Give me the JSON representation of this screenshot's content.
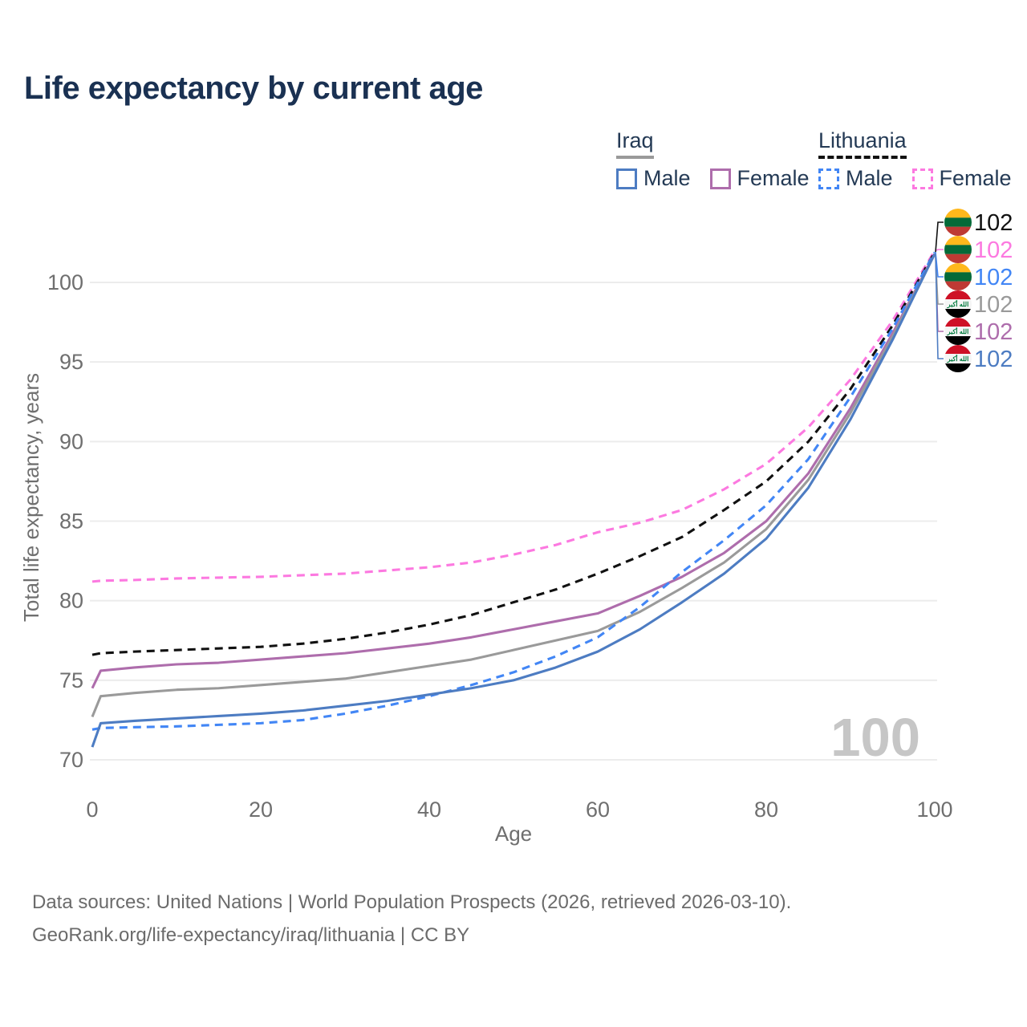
{
  "title": "Life expectancy by current age",
  "legend": {
    "groups": [
      {
        "name": "Iraq",
        "line_style": "solid",
        "underline_color": "#9a9a9a",
        "items": [
          {
            "label": "Male",
            "color": "#4d7cc2"
          },
          {
            "label": "Female",
            "color": "#ae6dac"
          }
        ]
      },
      {
        "name": "Lithuania",
        "line_style": "dashed",
        "underline_color": "#111111",
        "items": [
          {
            "label": "Male",
            "color": "#4286f5"
          },
          {
            "label": "Female",
            "color": "#fc79e0"
          }
        ]
      }
    ]
  },
  "watermark": "100",
  "footer": {
    "line1": "Data sources: United Nations | World Population Prospects (2026, retrieved 2026-03-10).",
    "line2": "GeoRank.org/life-expectancy/iraq/lithuania | CC BY"
  },
  "chart_data": {
    "type": "line",
    "title": "Life expectancy by current age",
    "xlabel": "Age",
    "ylabel": "Total life expectancy, years",
    "xlim": [
      0,
      100
    ],
    "ylim": [
      70,
      100
    ],
    "x_ticks": [
      0,
      20,
      40,
      60,
      80,
      100
    ],
    "y_ticks": [
      70,
      75,
      80,
      85,
      90,
      95,
      100
    ],
    "grid": "horizontal",
    "x": [
      0,
      1,
      5,
      10,
      15,
      20,
      25,
      30,
      35,
      40,
      45,
      50,
      55,
      60,
      65,
      70,
      75,
      80,
      85,
      90,
      95,
      100
    ],
    "series": [
      {
        "name": "Lithuania Female",
        "country": "Lithuania",
        "sex": "Female",
        "color": "#fc79e0",
        "dashed": true,
        "end_label": "102",
        "end_row": 1,
        "values": [
          81.2,
          81.25,
          81.3,
          81.4,
          81.45,
          81.5,
          81.6,
          81.7,
          81.9,
          82.1,
          82.4,
          82.9,
          83.5,
          84.3,
          84.9,
          85.7,
          87.0,
          88.6,
          90.9,
          93.9,
          97.6,
          102.0
        ]
      },
      {
        "name": "Lithuania",
        "country": "Lithuania",
        "sex": "Both",
        "color": "#111111",
        "dashed": true,
        "end_label": "102",
        "end_row": 0,
        "values": [
          76.6,
          76.7,
          76.8,
          76.9,
          77.0,
          77.1,
          77.3,
          77.6,
          78.0,
          78.5,
          79.1,
          79.9,
          80.7,
          81.7,
          82.8,
          84.0,
          85.7,
          87.5,
          90.0,
          93.3,
          97.3,
          101.9
        ]
      },
      {
        "name": "Iraq Female",
        "country": "Iraq",
        "sex": "Female",
        "color": "#ae6dac",
        "dashed": false,
        "end_label": "102",
        "end_row": 4,
        "values": [
          74.5,
          75.6,
          75.8,
          76.0,
          76.1,
          76.3,
          76.5,
          76.7,
          77.0,
          77.3,
          77.7,
          78.2,
          78.7,
          79.2,
          80.3,
          81.5,
          83.0,
          85.0,
          88.0,
          92.1,
          96.8,
          101.8
        ]
      },
      {
        "name": "Iraq",
        "country": "Iraq",
        "sex": "Both",
        "color": "#9a9a9a",
        "dashed": false,
        "end_label": "102",
        "end_row": 3,
        "values": [
          72.7,
          74.0,
          74.2,
          74.4,
          74.5,
          74.7,
          74.9,
          75.1,
          75.5,
          75.9,
          76.3,
          76.9,
          77.5,
          78.1,
          79.3,
          80.8,
          82.4,
          84.5,
          87.6,
          91.8,
          96.6,
          101.8
        ]
      },
      {
        "name": "Lithuania Male",
        "country": "Lithuania",
        "sex": "Male",
        "color": "#4286f5",
        "dashed": true,
        "end_label": "102",
        "end_row": 2,
        "values": [
          71.9,
          72.0,
          72.05,
          72.1,
          72.2,
          72.3,
          72.5,
          72.9,
          73.4,
          74.0,
          74.7,
          75.5,
          76.5,
          77.7,
          79.6,
          81.8,
          83.8,
          86.0,
          88.9,
          92.8,
          97.1,
          101.9
        ]
      },
      {
        "name": "Iraq Male",
        "country": "Iraq",
        "sex": "Male",
        "color": "#4d7cc2",
        "dashed": false,
        "end_label": "102",
        "end_row": 5,
        "values": [
          70.8,
          72.3,
          72.45,
          72.6,
          72.75,
          72.9,
          73.1,
          73.4,
          73.7,
          74.1,
          74.5,
          75.0,
          75.8,
          76.8,
          78.2,
          79.9,
          81.7,
          83.9,
          87.1,
          91.4,
          96.4,
          101.8
        ]
      }
    ],
    "flag_colors": {
      "lithuania": [
        "#FFB81C",
        "#046A38",
        "#BE3A34"
      ],
      "iraq": [
        "#CE1126",
        "#F5F5F5",
        "#000000"
      ],
      "iraq_script": "الله أكبر",
      "iraq_script_color": "#007A3D"
    }
  }
}
